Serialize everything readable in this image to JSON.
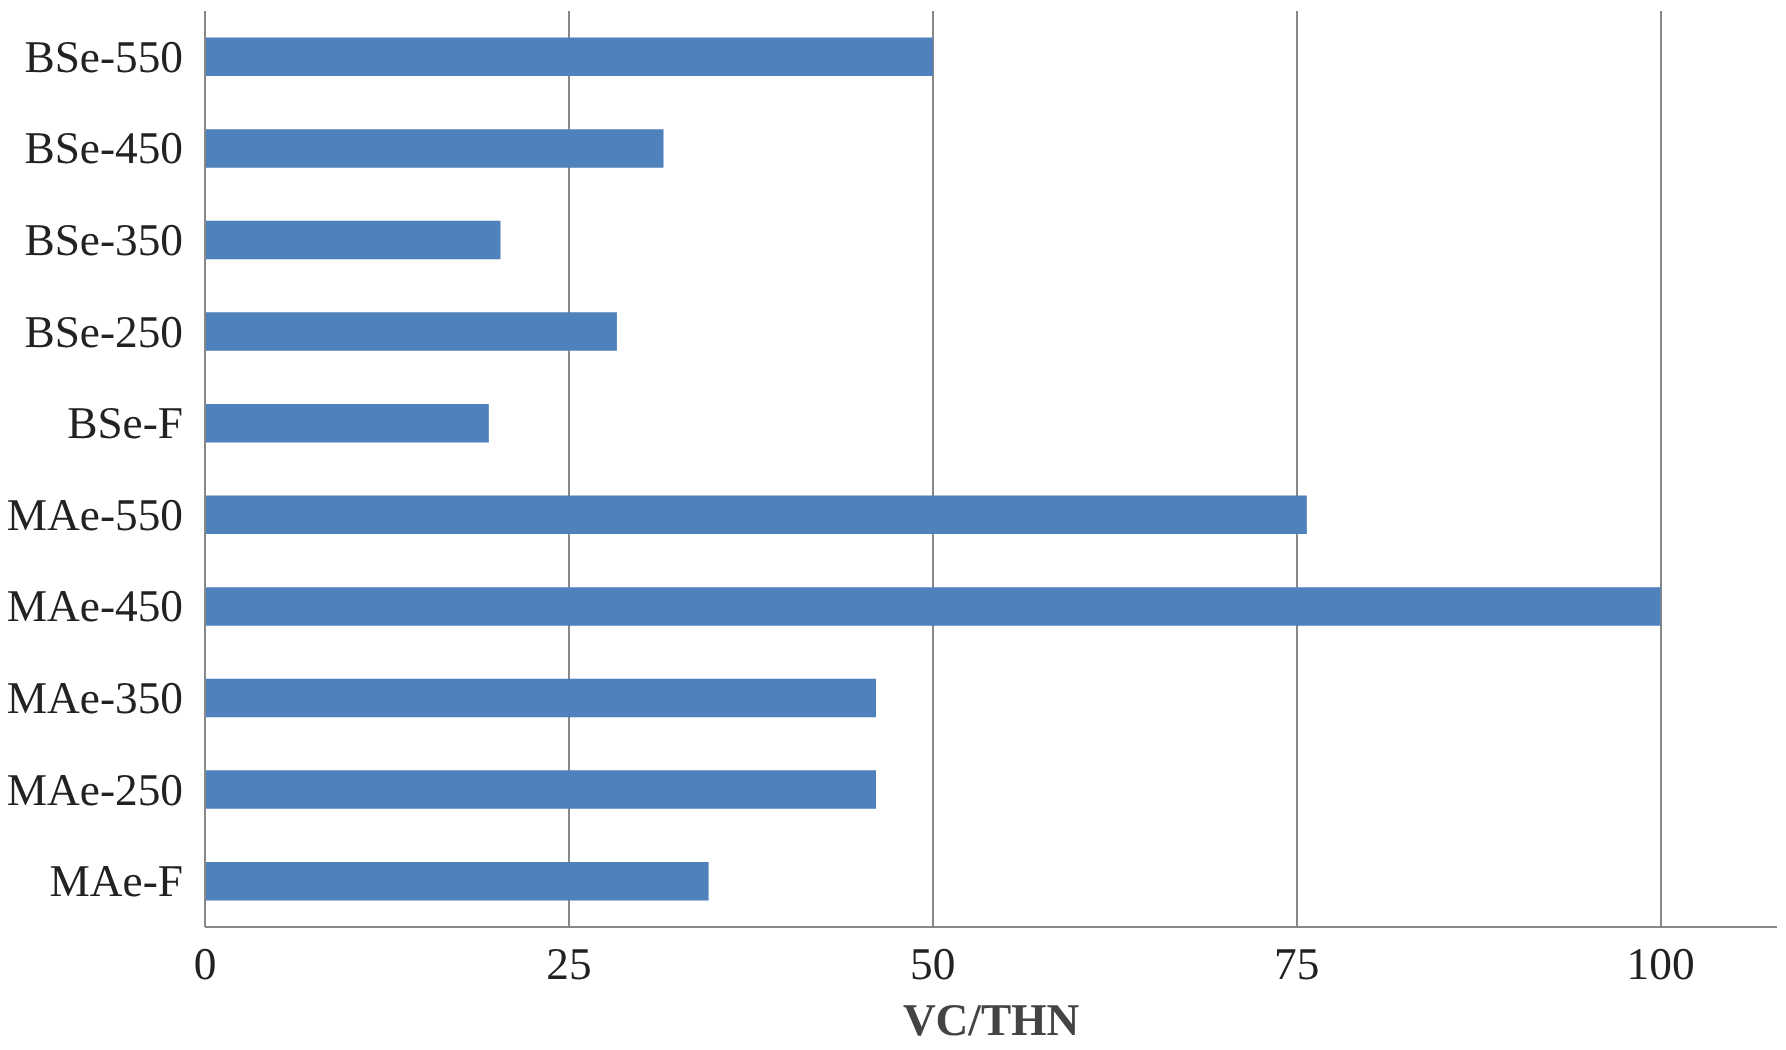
{
  "chart_data": {
    "type": "bar",
    "orientation": "horizontal",
    "xlabel": "VC/THN",
    "categories": [
      "BSe-550",
      "BSe-450",
      "BSe-350",
      "BSe-250",
      "BSe-F",
      "MAe-550",
      "MAe-450",
      "MAe-350",
      "MAe-250",
      "MAe-F"
    ],
    "values": [
      50,
      31.5,
      20.3,
      28.3,
      19.5,
      75.7,
      100,
      46.1,
      46.1,
      34.6
    ],
    "color": "#4f81bd",
    "xlim": [
      0,
      108
    ],
    "xticks": [
      0,
      25,
      50,
      75,
      100
    ],
    "grid": "x"
  }
}
